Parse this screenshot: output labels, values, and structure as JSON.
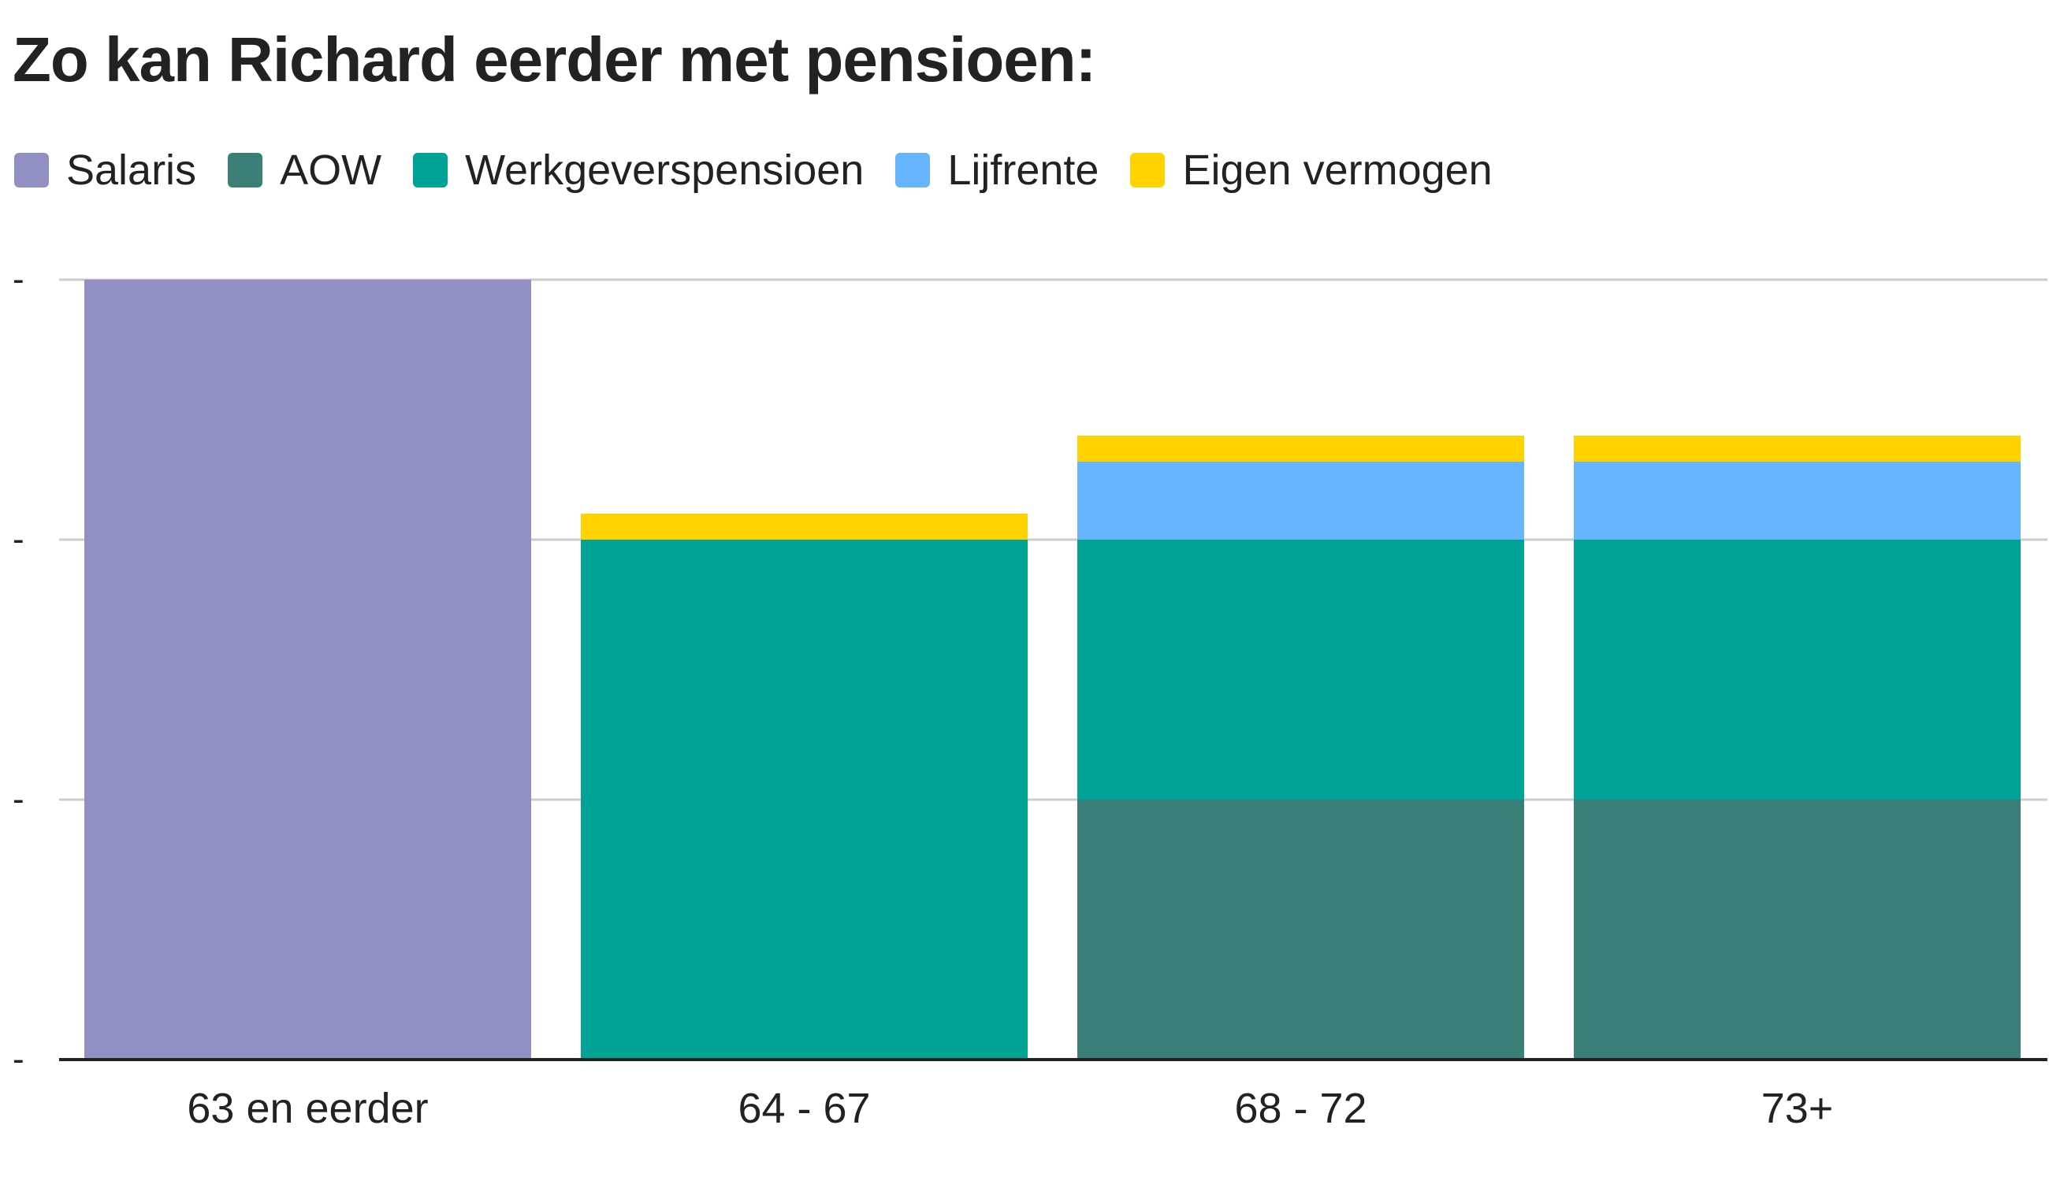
{
  "title": "Zo kan Richard eerder met pensioen:",
  "legend": [
    {
      "name": "Salaris",
      "color": "#9190c4"
    },
    {
      "name": "AOW",
      "color": "#3a7f78"
    },
    {
      "name": "Werkgeverspensioen",
      "color": "#00a396"
    },
    {
      "name": "Lijfrente",
      "color": "#67b5fe"
    },
    {
      "name": "Eigen vermogen",
      "color": "#ffd200"
    }
  ],
  "chart_data": {
    "type": "bar",
    "stacked": true,
    "title": "Zo kan Richard eerder met pensioen:",
    "xlabel": "",
    "ylabel": "",
    "categories": [
      "63 en eerder",
      "64 - 67",
      "68 - 72",
      "73+"
    ],
    "series": [
      {
        "name": "Salaris",
        "color": "#9190c4",
        "values": [
          3,
          0,
          0,
          0
        ]
      },
      {
        "name": "AOW",
        "color": "#3a7f78",
        "values": [
          0,
          0,
          1,
          1
        ]
      },
      {
        "name": "Werkgeverspensioen",
        "color": "#00a396",
        "values": [
          0,
          2,
          1,
          1
        ]
      },
      {
        "name": "Lijfrente",
        "color": "#67b5fe",
        "values": [
          0,
          0,
          0.3,
          0.3
        ]
      },
      {
        "name": "Eigen vermogen",
        "color": "#ffd200",
        "values": [
          0,
          0.1,
          0.1,
          0.1
        ]
      }
    ],
    "ylim": [
      0,
      3
    ],
    "yticks": [
      0,
      1,
      2,
      3
    ],
    "ytick_labels": [
      "-",
      "-",
      "-",
      "-"
    ],
    "grid": true,
    "legend_position": "top-left"
  }
}
